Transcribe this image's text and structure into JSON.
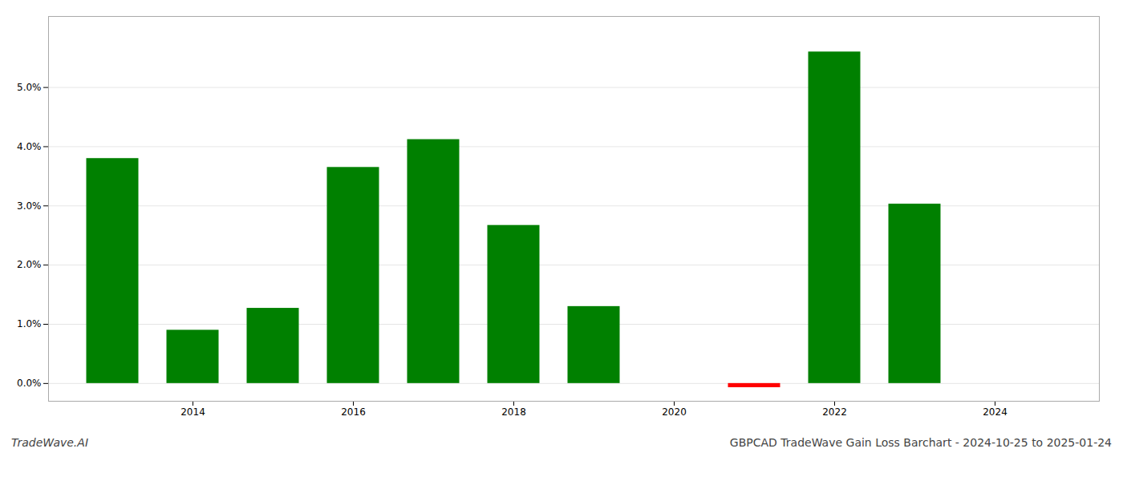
{
  "chart_data": {
    "type": "bar",
    "title": "GBPCAD TradeWave Gain Loss Barchart - 2024-10-25 to 2025-01-24",
    "subtitle": "TradeWave.AI",
    "x": [
      2013,
      2014,
      2015,
      2016,
      2017,
      2018,
      2019,
      2021,
      2022,
      2023
    ],
    "values": [
      3.8,
      0.9,
      1.27,
      3.65,
      4.12,
      2.67,
      1.3,
      -0.07,
      5.6,
      3.03
    ],
    "colors": [
      "#008000",
      "#008000",
      "#008000",
      "#008000",
      "#008000",
      "#008000",
      "#008000",
      "#ff0000",
      "#008000",
      "#008000"
    ],
    "xlim": [
      2012.2,
      2025.3
    ],
    "xticks": [
      2014,
      2016,
      2018,
      2020,
      2022,
      2024
    ],
    "ylim": [
      -0.3,
      6.2
    ],
    "yticks": [
      {
        "value": 0.0,
        "label": "0.0%"
      },
      {
        "value": 1.0,
        "label": "1.0%"
      },
      {
        "value": 2.0,
        "label": "2.0%"
      },
      {
        "value": 3.0,
        "label": "3.0%"
      },
      {
        "value": 4.0,
        "label": "4.0%"
      },
      {
        "value": 5.0,
        "label": "5.0%"
      }
    ],
    "grid": true
  }
}
